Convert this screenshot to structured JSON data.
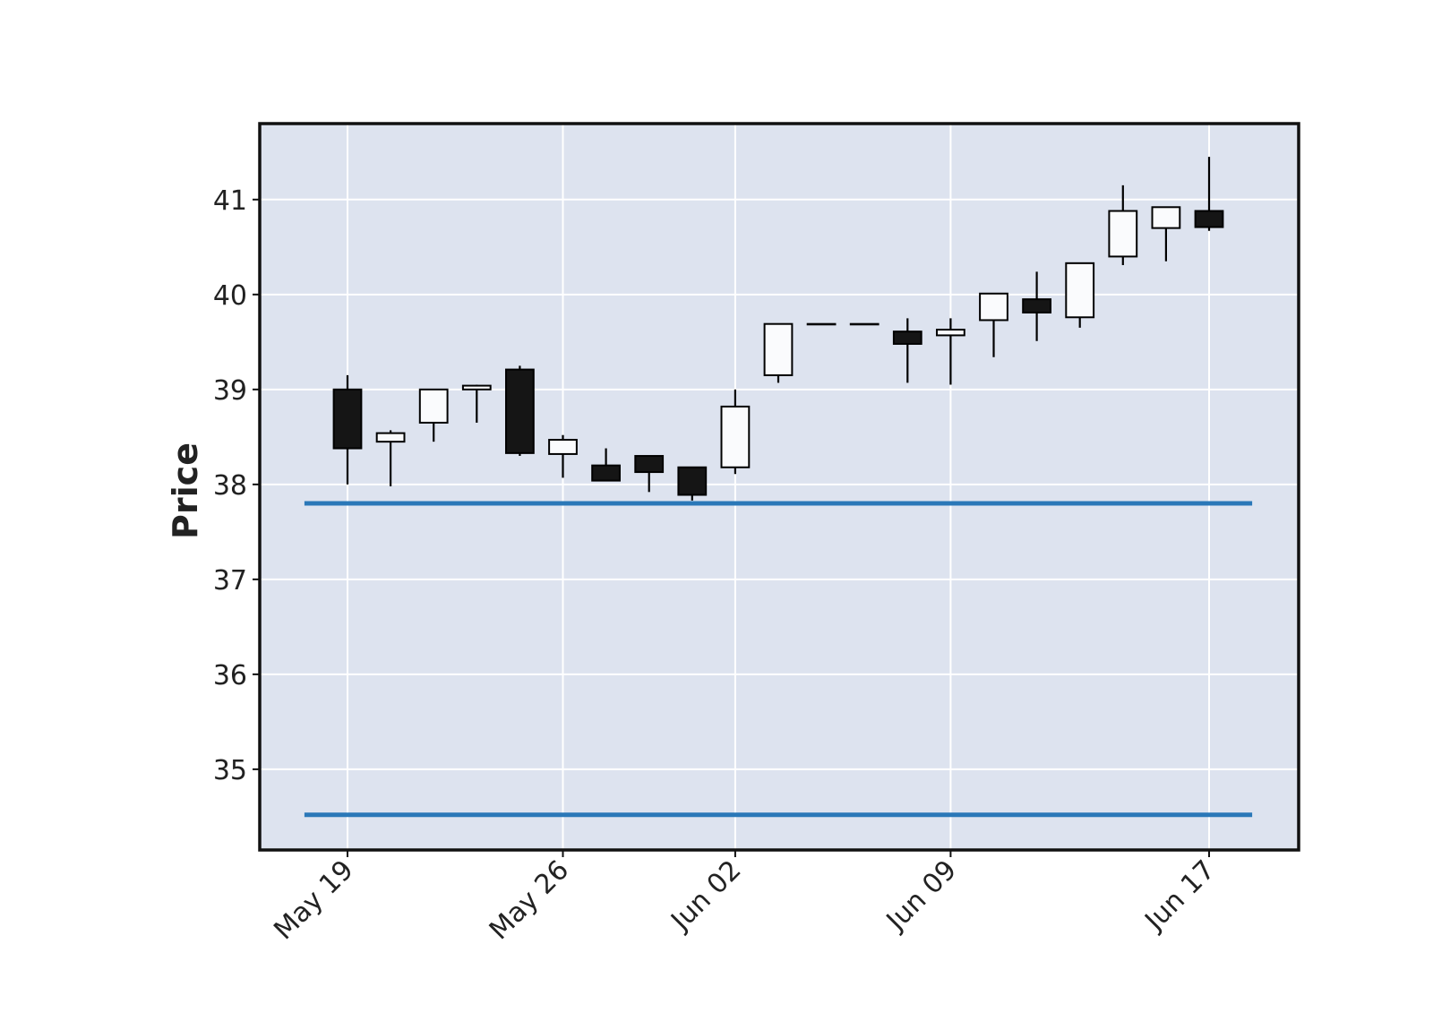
{
  "chart_data": {
    "type": "candlestick",
    "title": "",
    "xlabel": "",
    "ylabel": "Price",
    "ylim": [
      34.15,
      41.8
    ],
    "y_ticks": [
      35,
      36,
      37,
      38,
      39,
      40,
      41
    ],
    "grid": true,
    "x_ticks": [
      {
        "date": "2016-05-19",
        "label": "May 19"
      },
      {
        "date": "2016-05-26",
        "label": "May 26"
      },
      {
        "date": "2016-06-02",
        "label": "Jun 02"
      },
      {
        "date": "2016-06-09",
        "label": "Jun 09"
      },
      {
        "date": "2016-06-17",
        "label": "Jun 17"
      }
    ],
    "colors": {
      "background": "#dde3ef",
      "grid": "#ffffff",
      "up_fill": "#fafbfd",
      "down_fill": "#151515",
      "edge": "#000000",
      "hline": "#2a78b8"
    },
    "candles": [
      {
        "date": "2016-05-19",
        "open": 39.0,
        "high": 39.15,
        "low": 38.0,
        "close": 38.38
      },
      {
        "date": "2016-05-20",
        "open": 38.45,
        "high": 38.57,
        "low": 37.98,
        "close": 38.54
      },
      {
        "date": "2016-05-23",
        "open": 38.65,
        "high": 39.0,
        "low": 38.45,
        "close": 39.0
      },
      {
        "date": "2016-05-24",
        "open": 39.0,
        "high": 39.05,
        "low": 38.65,
        "close": 39.04
      },
      {
        "date": "2016-05-25",
        "open": 39.21,
        "high": 39.25,
        "low": 38.3,
        "close": 38.33
      },
      {
        "date": "2016-05-26",
        "open": 38.32,
        "high": 38.52,
        "low": 38.07,
        "close": 38.47
      },
      {
        "date": "2016-05-27",
        "open": 38.2,
        "high": 38.38,
        "low": 38.04,
        "close": 38.04
      },
      {
        "date": "2016-05-31",
        "open": 38.3,
        "high": 38.3,
        "low": 37.92,
        "close": 38.13
      },
      {
        "date": "2016-06-01",
        "open": 38.18,
        "high": 38.18,
        "low": 37.83,
        "close": 37.89
      },
      {
        "date": "2016-06-02",
        "open": 38.18,
        "high": 39.0,
        "low": 38.11,
        "close": 38.82
      },
      {
        "date": "2016-06-03",
        "open": 39.15,
        "high": 39.69,
        "low": 39.07,
        "close": 39.69
      },
      {
        "date": "2016-06-06",
        "open": 39.69,
        "high": 39.69,
        "low": 39.69,
        "close": 39.69
      },
      {
        "date": "2016-06-07",
        "open": 39.69,
        "high": 39.69,
        "low": 39.69,
        "close": 39.69
      },
      {
        "date": "2016-06-08",
        "open": 39.61,
        "high": 39.75,
        "low": 39.07,
        "close": 39.48
      },
      {
        "date": "2016-06-09",
        "open": 39.57,
        "high": 39.75,
        "low": 39.05,
        "close": 39.63
      },
      {
        "date": "2016-06-10",
        "open": 39.73,
        "high": 40.01,
        "low": 39.34,
        "close": 40.01
      },
      {
        "date": "2016-06-13",
        "open": 39.95,
        "high": 40.24,
        "low": 39.51,
        "close": 39.81
      },
      {
        "date": "2016-06-14",
        "open": 39.76,
        "high": 40.33,
        "low": 39.65,
        "close": 40.33
      },
      {
        "date": "2016-06-15",
        "open": 40.4,
        "high": 41.15,
        "low": 40.31,
        "close": 40.88
      },
      {
        "date": "2016-06-16",
        "open": 40.7,
        "high": 40.92,
        "low": 40.35,
        "close": 40.92
      },
      {
        "date": "2016-06-17",
        "open": 40.88,
        "high": 41.45,
        "low": 40.67,
        "close": 40.71
      }
    ],
    "hlines": [
      37.8,
      34.52
    ]
  }
}
